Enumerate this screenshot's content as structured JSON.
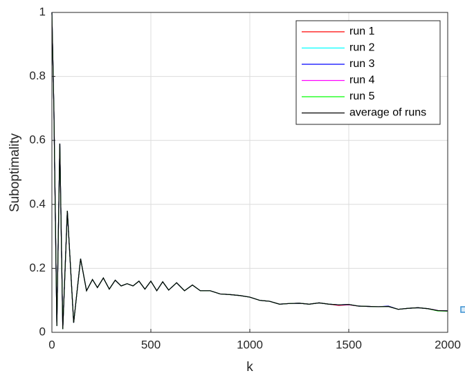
{
  "chart_data": {
    "type": "line",
    "xlabel": "k",
    "ylabel": "Suboptimality",
    "xlim": [
      0,
      2000
    ],
    "ylim": [
      0,
      1
    ],
    "xticks": [
      0,
      500,
      1000,
      1500,
      2000
    ],
    "yticks": [
      0,
      0.2,
      0.4,
      0.6,
      0.8,
      1
    ],
    "grid": true,
    "legend_position": "northeast",
    "x": [
      0,
      10,
      25,
      40,
      55,
      78,
      110,
      145,
      175,
      205,
      230,
      260,
      290,
      320,
      350,
      380,
      410,
      440,
      470,
      500,
      530,
      560,
      590,
      630,
      670,
      710,
      750,
      800,
      850,
      900,
      950,
      1000,
      1050,
      1100,
      1150,
      1200,
      1250,
      1300,
      1350,
      1400,
      1450,
      1500,
      1550,
      1600,
      1650,
      1700,
      1750,
      1800,
      1850,
      1900,
      1950,
      2000
    ],
    "series": [
      {
        "name": "run 1",
        "color": "#ff0000",
        "values": [
          1.0,
          0.7,
          0.02,
          0.59,
          0.01,
          0.38,
          0.03,
          0.23,
          0.13,
          0.165,
          0.14,
          0.17,
          0.135,
          0.163,
          0.145,
          0.152,
          0.145,
          0.16,
          0.135,
          0.16,
          0.13,
          0.158,
          0.132,
          0.155,
          0.13,
          0.148,
          0.13,
          0.13,
          0.12,
          0.118,
          0.115,
          0.11,
          0.1,
          0.097,
          0.088,
          0.09,
          0.091,
          0.088,
          0.092,
          0.088,
          0.084,
          0.086,
          0.082,
          0.081,
          0.08,
          0.081,
          0.072,
          0.075,
          0.077,
          0.074,
          0.068,
          0.067
        ]
      },
      {
        "name": "run 2",
        "color": "#00ffff",
        "values": [
          1.0,
          0.7,
          0.02,
          0.59,
          0.01,
          0.38,
          0.03,
          0.23,
          0.13,
          0.165,
          0.14,
          0.17,
          0.135,
          0.163,
          0.145,
          0.152,
          0.145,
          0.16,
          0.135,
          0.16,
          0.13,
          0.158,
          0.132,
          0.155,
          0.13,
          0.148,
          0.13,
          0.13,
          0.12,
          0.118,
          0.115,
          0.11,
          0.1,
          0.097,
          0.088,
          0.09,
          0.091,
          0.088,
          0.092,
          0.088,
          0.086,
          0.087,
          0.082,
          0.081,
          0.08,
          0.081,
          0.072,
          0.075,
          0.077,
          0.074,
          0.068,
          0.067
        ]
      },
      {
        "name": "run 3",
        "color": "#0000ff",
        "values": [
          1.0,
          0.7,
          0.02,
          0.59,
          0.01,
          0.38,
          0.03,
          0.23,
          0.13,
          0.165,
          0.14,
          0.17,
          0.135,
          0.163,
          0.145,
          0.152,
          0.145,
          0.16,
          0.135,
          0.16,
          0.13,
          0.158,
          0.132,
          0.155,
          0.13,
          0.148,
          0.13,
          0.13,
          0.12,
          0.118,
          0.115,
          0.11,
          0.1,
          0.097,
          0.088,
          0.09,
          0.091,
          0.088,
          0.092,
          0.088,
          0.086,
          0.087,
          0.082,
          0.081,
          0.08,
          0.082,
          0.072,
          0.075,
          0.077,
          0.074,
          0.068,
          0.067
        ]
      },
      {
        "name": "run 4",
        "color": "#ff00ff",
        "values": [
          1.0,
          0.7,
          0.02,
          0.59,
          0.01,
          0.38,
          0.03,
          0.23,
          0.13,
          0.165,
          0.14,
          0.17,
          0.135,
          0.163,
          0.145,
          0.152,
          0.145,
          0.16,
          0.135,
          0.16,
          0.13,
          0.158,
          0.132,
          0.155,
          0.13,
          0.148,
          0.13,
          0.13,
          0.12,
          0.118,
          0.115,
          0.11,
          0.1,
          0.097,
          0.088,
          0.09,
          0.091,
          0.088,
          0.092,
          0.088,
          0.085,
          0.086,
          0.082,
          0.081,
          0.08,
          0.081,
          0.072,
          0.075,
          0.077,
          0.074,
          0.068,
          0.067
        ]
      },
      {
        "name": "run 5",
        "color": "#00ff00",
        "values": [
          1.0,
          0.7,
          0.02,
          0.59,
          0.01,
          0.38,
          0.03,
          0.23,
          0.13,
          0.165,
          0.14,
          0.17,
          0.135,
          0.163,
          0.145,
          0.152,
          0.145,
          0.16,
          0.135,
          0.16,
          0.13,
          0.158,
          0.132,
          0.155,
          0.13,
          0.148,
          0.13,
          0.13,
          0.12,
          0.118,
          0.115,
          0.11,
          0.1,
          0.097,
          0.088,
          0.09,
          0.091,
          0.088,
          0.092,
          0.088,
          0.086,
          0.087,
          0.082,
          0.081,
          0.08,
          0.081,
          0.072,
          0.075,
          0.077,
          0.074,
          0.067,
          0.066
        ]
      },
      {
        "name": "average of runs",
        "color": "#000000",
        "values": [
          1.0,
          0.7,
          0.02,
          0.59,
          0.01,
          0.38,
          0.03,
          0.23,
          0.13,
          0.165,
          0.14,
          0.17,
          0.135,
          0.163,
          0.145,
          0.152,
          0.145,
          0.16,
          0.135,
          0.16,
          0.13,
          0.158,
          0.132,
          0.155,
          0.13,
          0.148,
          0.13,
          0.13,
          0.12,
          0.118,
          0.115,
          0.11,
          0.1,
          0.097,
          0.088,
          0.09,
          0.091,
          0.088,
          0.092,
          0.088,
          0.086,
          0.087,
          0.082,
          0.081,
          0.08,
          0.081,
          0.072,
          0.075,
          0.077,
          0.074,
          0.068,
          0.067
        ]
      }
    ]
  }
}
